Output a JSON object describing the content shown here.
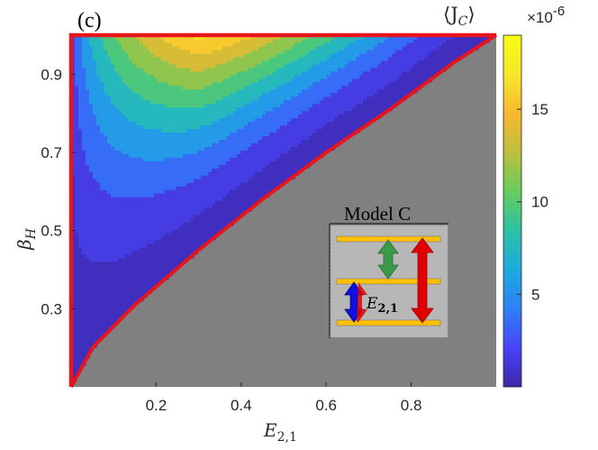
{
  "chart_data": {
    "type": "heatmap",
    "panel_label": "(c)",
    "xlabel": "E",
    "xlabel_sub": "2,1",
    "ylabel": "β",
    "ylabel_sub": "H",
    "xlim": [
      0,
      1
    ],
    "ylim": [
      0.1,
      1
    ],
    "xticks": [
      0.2,
      0.4,
      0.6,
      0.8
    ],
    "xtick_labels": [
      "0.2",
      "0.4",
      "0.6",
      "0.8"
    ],
    "yticks": [
      0.3,
      0.5,
      0.7,
      0.9
    ],
    "ytick_labels": [
      "0.3",
      "0.5",
      "0.7",
      "0.9"
    ],
    "colorbar": {
      "title": "⟨J",
      "title_sub": "C",
      "title_close": "⟩",
      "multiplier": "×10",
      "multiplier_exp": "-6",
      "range": [
        0,
        19
      ],
      "ticks": [
        5,
        10,
        15
      ],
      "tick_labels": [
        "5",
        "10",
        "15"
      ],
      "colormap": [
        "#3e26a8",
        "#4743f8",
        "#2f80f6",
        "#1caadf",
        "#2cc2a3",
        "#67cc5e",
        "#bdbf3c",
        "#f9b830",
        "#f6e828",
        "#f9fb15"
      ]
    },
    "contour_levels": [
      1,
      3,
      5,
      7,
      9,
      11,
      13,
      15,
      17
    ],
    "boundary": {
      "description": "red curve; region below curve has no current (grey)",
      "color": "#e8141b",
      "points": [
        [
          0,
          0.1
        ],
        [
          0.05,
          0.2
        ],
        [
          0.15,
          0.31
        ],
        [
          0.3,
          0.45
        ],
        [
          0.45,
          0.58
        ],
        [
          0.6,
          0.7
        ],
        [
          0.75,
          0.81
        ],
        [
          0.9,
          0.93
        ],
        [
          1.0,
          1.0
        ]
      ]
    },
    "infeasible_color": "#808080",
    "inset": {
      "title": "Model C",
      "label": "E",
      "label_sub": "2,1",
      "level_color": "#ffc000",
      "arrows": [
        {
          "name": "pump",
          "color": "#e00000"
        },
        {
          "name": "hot",
          "color": "#3a9a4a"
        },
        {
          "name": "cold",
          "color": "#1010e0"
        }
      ]
    }
  }
}
